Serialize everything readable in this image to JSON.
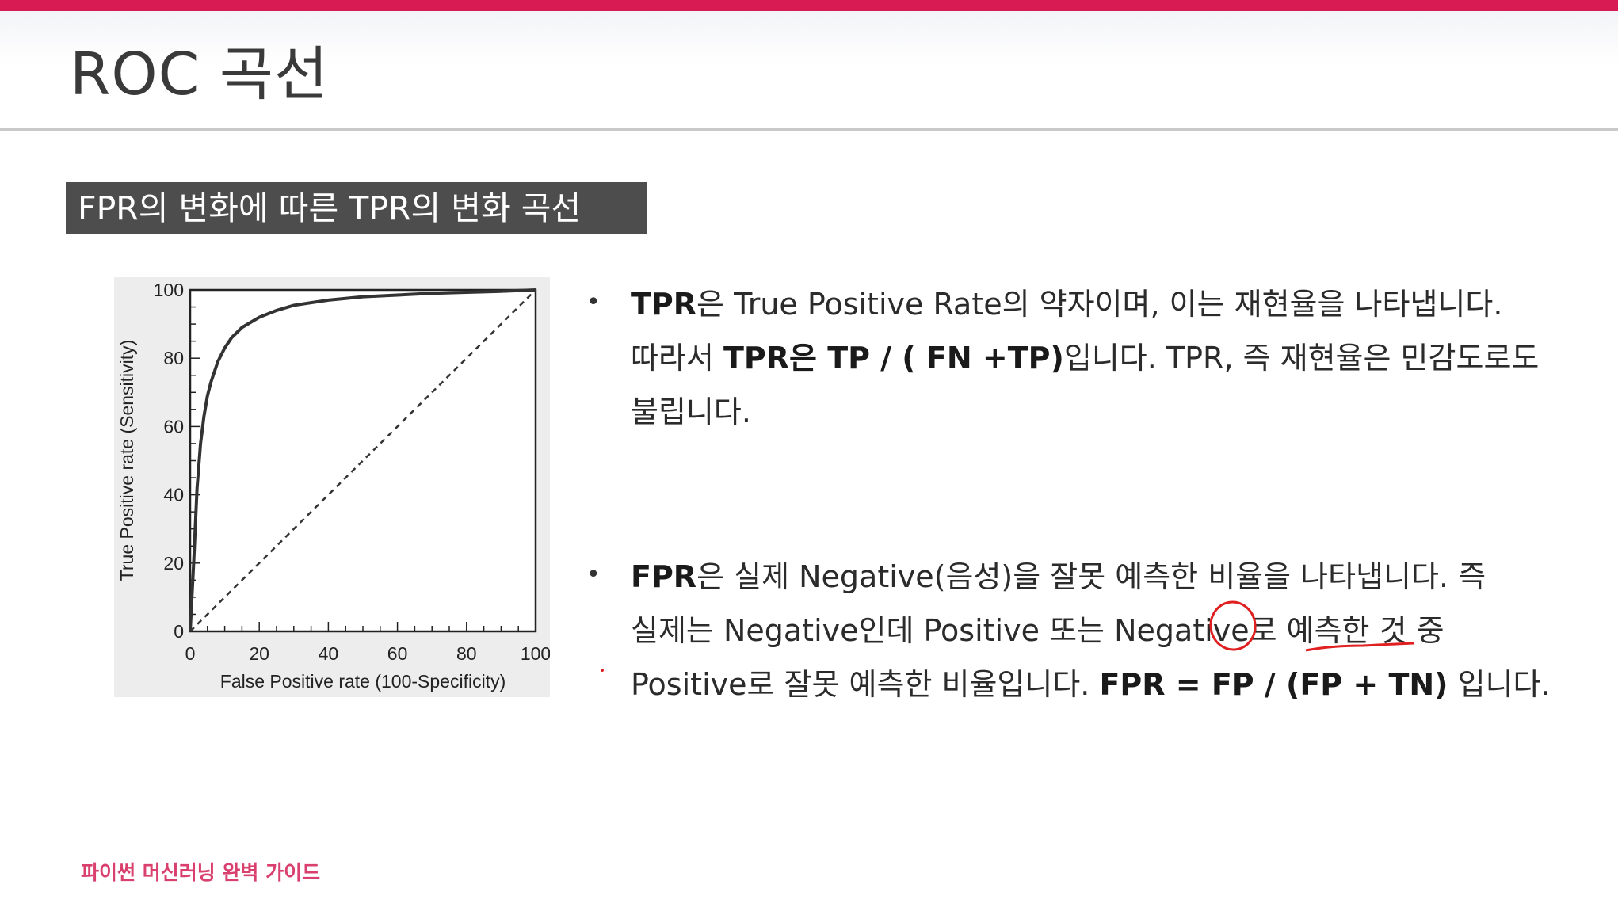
{
  "slide": {
    "title": "ROC 곡선",
    "section_label": "FPR의 변화에 따른 TPR의 변화 곡선",
    "footer": "파이썬 머신러닝 완벽 가이드",
    "accent_color": "#d81b52"
  },
  "bullets": {
    "tpr": {
      "line1_bold": "TPR",
      "line1_text": "은 True Positive Rate의 약자이며, 이는 재현율을 나타냅니다.",
      "line2_pre": "따라서 ",
      "line2_bold": "TPR은 TP / ( FN +TP)",
      "line2_post": "입니다. TPR, 즉 재현율은 민감도로도",
      "line3": "불립니다."
    },
    "fpr": {
      "line1_bold": "FPR",
      "line1_text": "은 실제 Negative(음성)을 잘못 예측한 비율을 나타냅니다. 즉",
      "line2": "실제는 Negative인데 Positive 또는 Negative로 예측한 것 중",
      "line3_pre": "Positive로 잘못 예측한 비율입니다. ",
      "line3_formula_a": "FPR = ",
      "line3_formula_fp": "FP",
      "line3_formula_b": " / (FP + TN)",
      "line3_post": " 입니다."
    }
  },
  "chart_data": {
    "type": "line",
    "xlabel": "False Positive rate (100-Specificity)",
    "ylabel": "True Positive rate (Sensitivity)",
    "xlim": [
      0,
      100
    ],
    "ylim": [
      0,
      100
    ],
    "x_ticks": [
      0,
      20,
      40,
      60,
      80,
      100
    ],
    "y_ticks": [
      0,
      20,
      40,
      60,
      80,
      100
    ],
    "x_tick_labels": [
      "0",
      "20",
      "40",
      "60",
      "80",
      "100"
    ],
    "y_tick_labels": [
      "0",
      "20",
      "40",
      "60",
      "80",
      "100"
    ],
    "grid": false,
    "series": [
      {
        "style": "solid",
        "x": [
          0,
          1,
          2,
          3,
          4,
          5,
          6,
          8,
          10,
          12,
          15,
          20,
          25,
          30,
          40,
          50,
          60,
          70,
          80,
          90,
          100
        ],
        "y": [
          0,
          20,
          42,
          55,
          63,
          69,
          73,
          79,
          83,
          86,
          89,
          92,
          94,
          95.5,
          97,
          98,
          98.5,
          99,
          99.3,
          99.6,
          100
        ]
      },
      {
        "style": "dashed",
        "x": [
          0,
          100
        ],
        "y": [
          0,
          100
        ]
      }
    ]
  }
}
